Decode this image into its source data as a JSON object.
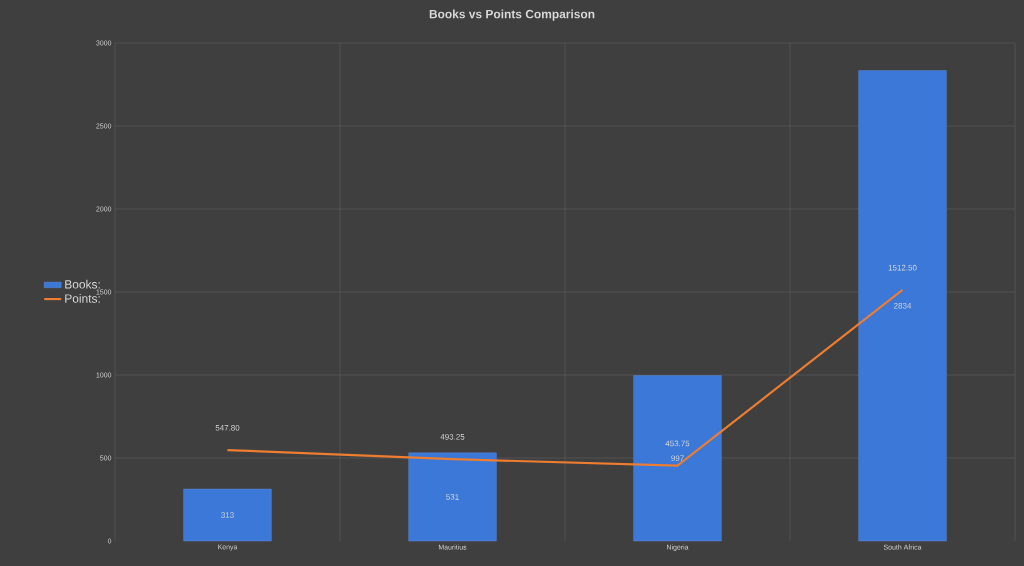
{
  "chart_data": {
    "type": "bar",
    "title": "Books vs Points Comparison",
    "categories": [
      "Kenya",
      "Mauritius",
      "Nigeria",
      "South Africa"
    ],
    "series": [
      {
        "name": "Books:",
        "color": "#3c78d8",
        "values": [
          313,
          531,
          997,
          2834
        ],
        "value_labels": [
          "313",
          "531",
          "997",
          "2834"
        ]
      },
      {
        "name": "Points:",
        "type": "line",
        "color": "#ed7d31",
        "values": [
          547.8,
          493.25,
          453.75,
          1512.5
        ],
        "value_labels": [
          "547.80",
          "493.25",
          "453.75",
          "1512.50"
        ]
      }
    ],
    "ylim": [
      0,
      3000
    ],
    "yticks": [
      0,
      500,
      1000,
      1500,
      2000,
      2500,
      3000
    ],
    "grid": true,
    "legend": "left"
  }
}
